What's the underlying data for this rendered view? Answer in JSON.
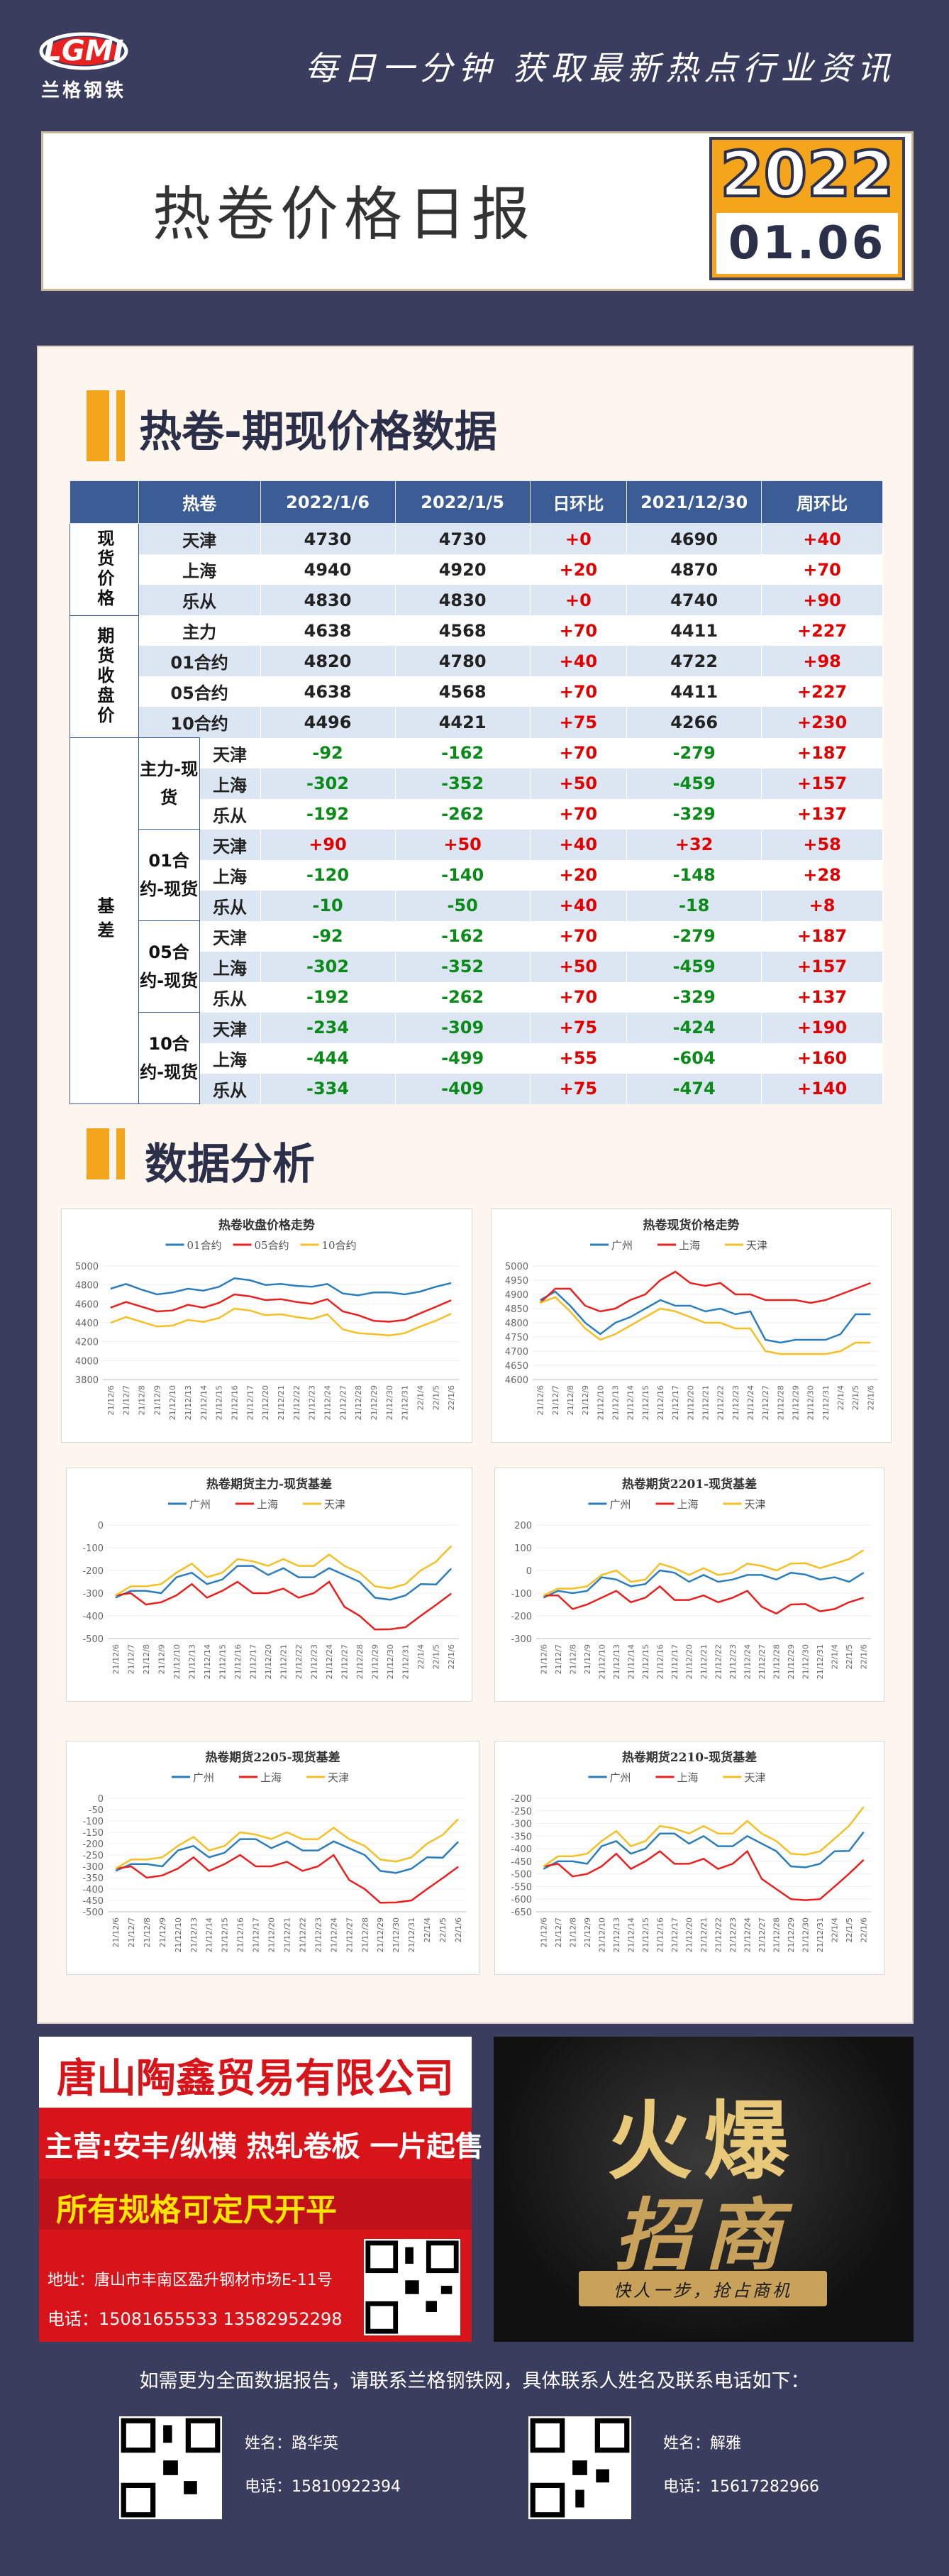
{
  "header": {
    "logo_text": "LGMI",
    "logo_sub": "兰格钢铁",
    "slogan": "每日一分钟  获取最新热点行业资讯",
    "title": "热卷价格日报",
    "year": "2022",
    "date": "01.06"
  },
  "section1": {
    "title": "热卷-期现价格数据"
  },
  "table": {
    "headers": [
      "热卷",
      "2022/1/6",
      "2022/1/5",
      "日环比",
      "2021/12/30",
      "周环比"
    ],
    "spot_group": "现货价格",
    "futures_group": "期货收盘价",
    "basis_group": "基差",
    "spot": [
      {
        "name": "天津",
        "v1": "4730",
        "v2": "4730",
        "d": "+0",
        "w0": "4690",
        "w": "+40"
      },
      {
        "name": "上海",
        "v1": "4940",
        "v2": "4920",
        "d": "+20",
        "w0": "4870",
        "w": "+70"
      },
      {
        "name": "乐从",
        "v1": "4830",
        "v2": "4830",
        "d": "+0",
        "w0": "4740",
        "w": "+90"
      }
    ],
    "futures": [
      {
        "name": "主力",
        "v1": "4638",
        "v2": "4568",
        "d": "+70",
        "w0": "4411",
        "w": "+227"
      },
      {
        "name": "01合约",
        "v1": "4820",
        "v2": "4780",
        "d": "+40",
        "w0": "4722",
        "w": "+98"
      },
      {
        "name": "05合约",
        "v1": "4638",
        "v2": "4568",
        "d": "+70",
        "w0": "4411",
        "w": "+227"
      },
      {
        "name": "10合约",
        "v1": "4496",
        "v2": "4421",
        "d": "+75",
        "w0": "4266",
        "w": "+230"
      }
    ],
    "basis": [
      {
        "label": "主力-现货",
        "rows": [
          {
            "city": "天津",
            "v1": "-92",
            "v2": "-162",
            "d": "+70",
            "w0": "-279",
            "w": "+187"
          },
          {
            "city": "上海",
            "v1": "-302",
            "v2": "-352",
            "d": "+50",
            "w0": "-459",
            "w": "+157"
          },
          {
            "city": "乐从",
            "v1": "-192",
            "v2": "-262",
            "d": "+70",
            "w0": "-329",
            "w": "+137"
          }
        ]
      },
      {
        "label": "01合约-现货",
        "rows": [
          {
            "city": "天津",
            "v1": "+90",
            "v2": "+50",
            "d": "+40",
            "w0": "+32",
            "w": "+58"
          },
          {
            "city": "上海",
            "v1": "-120",
            "v2": "-140",
            "d": "+20",
            "w0": "-148",
            "w": "+28"
          },
          {
            "city": "乐从",
            "v1": "-10",
            "v2": "-50",
            "d": "+40",
            "w0": "-18",
            "w": "+8"
          }
        ]
      },
      {
        "label": "05合约-现货",
        "rows": [
          {
            "city": "天津",
            "v1": "-92",
            "v2": "-162",
            "d": "+70",
            "w0": "-279",
            "w": "+187"
          },
          {
            "city": "上海",
            "v1": "-302",
            "v2": "-352",
            "d": "+50",
            "w0": "-459",
            "w": "+157"
          },
          {
            "city": "乐从",
            "v1": "-192",
            "v2": "-262",
            "d": "+70",
            "w0": "-329",
            "w": "+137"
          }
        ]
      },
      {
        "label": "10合约-现货",
        "rows": [
          {
            "city": "天津",
            "v1": "-234",
            "v2": "-309",
            "d": "+75",
            "w0": "-424",
            "w": "+190"
          },
          {
            "city": "上海",
            "v1": "-444",
            "v2": "-499",
            "d": "+55",
            "w0": "-604",
            "w": "+160"
          },
          {
            "city": "乐从",
            "v1": "-334",
            "v2": "-409",
            "d": "+75",
            "w0": "-474",
            "w": "+140"
          }
        ]
      }
    ]
  },
  "section2": {
    "title": "数据分析"
  },
  "chart_data": [
    {
      "type": "line",
      "title": "热卷收盘价格走势",
      "x": [
        "21/12/6",
        "21/12/7",
        "21/12/8",
        "21/12/9",
        "21/12/10",
        "21/12/13",
        "21/12/14",
        "21/12/15",
        "21/12/16",
        "21/12/17",
        "21/12/20",
        "21/12/21",
        "21/12/22",
        "21/12/23",
        "21/12/24",
        "21/12/27",
        "21/12/28",
        "21/12/29",
        "21/12/30",
        "21/12/31",
        "22/1/4",
        "22/1/5",
        "22/1/6"
      ],
      "ylim": [
        3800,
        5000
      ],
      "yticks": [
        "5000",
        "4800",
        "4600",
        "4400",
        "4200",
        "4000",
        "3800"
      ],
      "series": [
        {
          "name": "01合约",
          "color": "#2b7dbb",
          "values": [
            4760,
            4810,
            4750,
            4700,
            4720,
            4760,
            4740,
            4780,
            4870,
            4850,
            4800,
            4810,
            4790,
            4780,
            4810,
            4710,
            4690,
            4720,
            4722,
            4700,
            4730,
            4780,
            4820
          ]
        },
        {
          "name": "05合约",
          "color": "#e8201f",
          "values": [
            4560,
            4620,
            4570,
            4520,
            4530,
            4590,
            4560,
            4610,
            4700,
            4680,
            4640,
            4650,
            4620,
            4600,
            4650,
            4520,
            4480,
            4420,
            4411,
            4430,
            4500,
            4568,
            4638
          ]
        },
        {
          "name": "10合约",
          "color": "#f4c026",
          "values": [
            4400,
            4460,
            4410,
            4360,
            4370,
            4430,
            4410,
            4450,
            4550,
            4530,
            4480,
            4490,
            4460,
            4440,
            4490,
            4330,
            4290,
            4280,
            4266,
            4290,
            4360,
            4421,
            4496
          ]
        }
      ]
    },
    {
      "type": "line",
      "title": "热卷现货价格走势",
      "x": [
        "21/12/6",
        "21/12/7",
        "21/12/8",
        "21/12/9",
        "21/12/10",
        "21/12/13",
        "21/12/14",
        "21/12/15",
        "21/12/16",
        "21/12/17",
        "21/12/20",
        "21/12/21",
        "21/12/22",
        "21/12/23",
        "21/12/24",
        "21/12/27",
        "21/12/28",
        "21/12/29",
        "21/12/30",
        "21/12/31",
        "22/1/4",
        "22/1/5",
        "22/1/6"
      ],
      "ylim": [
        4600,
        5000
      ],
      "yticks": [
        "5000",
        "4950",
        "4900",
        "4850",
        "4800",
        "4750",
        "4700",
        "4650",
        "4600"
      ],
      "series": [
        {
          "name": "广州",
          "color": "#2b7dbb",
          "values": [
            4880,
            4910,
            4860,
            4800,
            4760,
            4800,
            4820,
            4850,
            4880,
            4860,
            4860,
            4840,
            4850,
            4830,
            4840,
            4740,
            4730,
            4740,
            4740,
            4740,
            4760,
            4830,
            4830
          ]
        },
        {
          "name": "上海",
          "color": "#e8201f",
          "values": [
            4870,
            4920,
            4920,
            4860,
            4840,
            4850,
            4880,
            4900,
            4950,
            4980,
            4940,
            4930,
            4940,
            4900,
            4900,
            4880,
            4880,
            4880,
            4870,
            4880,
            4900,
            4920,
            4940
          ]
        },
        {
          "name": "天津",
          "color": "#f4c026",
          "values": [
            4870,
            4890,
            4840,
            4780,
            4740,
            4760,
            4790,
            4820,
            4850,
            4840,
            4820,
            4800,
            4800,
            4780,
            4780,
            4700,
            4690,
            4690,
            4690,
            4690,
            4700,
            4730,
            4730
          ]
        }
      ]
    },
    {
      "type": "line",
      "title": "热卷期货主力-现货基差",
      "x": [
        "21/12/6",
        "21/12/7",
        "21/12/8",
        "21/12/9",
        "21/12/10",
        "21/12/13",
        "21/12/14",
        "21/12/15",
        "21/12/16",
        "21/12/17",
        "21/12/20",
        "21/12/21",
        "21/12/22",
        "21/12/23",
        "21/12/24",
        "21/12/27",
        "21/12/28",
        "21/12/29",
        "21/12/30",
        "21/12/31",
        "22/1/4",
        "22/1/5",
        "22/1/6"
      ],
      "ylim": [
        -500,
        0
      ],
      "yticks": [
        "0",
        "-100",
        "-200",
        "-300",
        "-400",
        "-500"
      ],
      "series": [
        {
          "name": "广州",
          "color": "#2b7dbb",
          "values": [
            -320,
            -290,
            -290,
            -300,
            -230,
            -210,
            -260,
            -240,
            -180,
            -180,
            -220,
            -190,
            -230,
            -230,
            -190,
            -220,
            -250,
            -320,
            -329,
            -310,
            -260,
            -262,
            -192
          ]
        },
        {
          "name": "上海",
          "color": "#e8201f",
          "values": [
            -310,
            -300,
            -350,
            -340,
            -310,
            -260,
            -320,
            -290,
            -250,
            -300,
            -300,
            -280,
            -320,
            -300,
            -250,
            -360,
            -400,
            -460,
            -459,
            -450,
            -400,
            -352,
            -302
          ]
        },
        {
          "name": "天津",
          "color": "#f4c026",
          "values": [
            -310,
            -270,
            -270,
            -260,
            -210,
            -170,
            -230,
            -210,
            -150,
            -160,
            -180,
            -150,
            -180,
            -180,
            -130,
            -180,
            -210,
            -270,
            -279,
            -260,
            -200,
            -162,
            -92
          ]
        }
      ]
    },
    {
      "type": "line",
      "title": "热卷期货2201-现货基差",
      "x": [
        "21/12/6",
        "21/12/7",
        "21/12/8",
        "21/12/9",
        "21/12/10",
        "21/12/13",
        "21/12/14",
        "21/12/15",
        "21/12/16",
        "21/12/17",
        "21/12/20",
        "21/12/21",
        "21/12/22",
        "21/12/23",
        "21/12/24",
        "21/12/27",
        "21/12/28",
        "21/12/29",
        "21/12/30",
        "21/12/31",
        "22/1/4",
        "22/1/5",
        "22/1/6"
      ],
      "ylim": [
        -300,
        200
      ],
      "yticks": [
        "200",
        "100",
        "0",
        "-100",
        "-200",
        "-300"
      ],
      "series": [
        {
          "name": "广州",
          "color": "#2b7dbb",
          "values": [
            -120,
            -90,
            -100,
            -90,
            -30,
            -40,
            -70,
            -60,
            0,
            -10,
            -50,
            -20,
            -50,
            -40,
            -20,
            -20,
            -40,
            -10,
            -18,
            -40,
            -30,
            -50,
            -10
          ]
        },
        {
          "name": "上海",
          "color": "#e8201f",
          "values": [
            -110,
            -110,
            -170,
            -150,
            -120,
            -90,
            -140,
            -120,
            -70,
            -130,
            -130,
            -110,
            -140,
            -120,
            -90,
            -160,
            -190,
            -150,
            -148,
            -180,
            -170,
            -140,
            -120
          ]
        },
        {
          "name": "天津",
          "color": "#f4c026",
          "values": [
            -110,
            -80,
            -80,
            -70,
            -20,
            0,
            -50,
            -40,
            30,
            10,
            -20,
            10,
            -20,
            -10,
            30,
            20,
            0,
            30,
            32,
            10,
            30,
            50,
            90
          ]
        }
      ]
    },
    {
      "type": "line",
      "title": "热卷期货2205-现货基差",
      "x": [
        "21/12/6",
        "21/12/7",
        "21/12/8",
        "21/12/9",
        "21/12/10",
        "21/12/13",
        "21/12/14",
        "21/12/15",
        "21/12/16",
        "21/12/17",
        "21/12/20",
        "21/12/21",
        "21/12/22",
        "21/12/23",
        "21/12/24",
        "21/12/27",
        "21/12/28",
        "21/12/29",
        "21/12/30",
        "21/12/31",
        "22/1/4",
        "22/1/5",
        "22/1/6"
      ],
      "ylim": [
        -500,
        0
      ],
      "yticks": [
        "0",
        "-50",
        "-100",
        "-150",
        "-200",
        "-250",
        "-300",
        "-350",
        "-400",
        "-450",
        "-500"
      ],
      "series": [
        {
          "name": "广州",
          "color": "#2b7dbb",
          "values": [
            -320,
            -290,
            -290,
            -300,
            -230,
            -210,
            -260,
            -240,
            -180,
            -180,
            -220,
            -190,
            -230,
            -230,
            -190,
            -220,
            -250,
            -320,
            -329,
            -310,
            -260,
            -262,
            -192
          ]
        },
        {
          "name": "上海",
          "color": "#e8201f",
          "values": [
            -310,
            -300,
            -350,
            -340,
            -310,
            -260,
            -320,
            -290,
            -250,
            -300,
            -300,
            -280,
            -320,
            -300,
            -250,
            -360,
            -400,
            -460,
            -459,
            -450,
            -400,
            -352,
            -302
          ]
        },
        {
          "name": "天津",
          "color": "#f4c026",
          "values": [
            -310,
            -270,
            -270,
            -260,
            -210,
            -170,
            -230,
            -210,
            -150,
            -160,
            -180,
            -150,
            -180,
            -180,
            -130,
            -180,
            -210,
            -270,
            -279,
            -260,
            -200,
            -162,
            -92
          ]
        }
      ]
    },
    {
      "type": "line",
      "title": "热卷期货2210-现货基差",
      "x": [
        "21/12/6",
        "21/12/7",
        "21/12/8",
        "21/12/9",
        "21/12/10",
        "21/12/13",
        "21/12/14",
        "21/12/15",
        "21/12/16",
        "21/12/17",
        "21/12/20",
        "21/12/21",
        "21/12/22",
        "21/12/23",
        "21/12/24",
        "21/12/27",
        "21/12/28",
        "21/12/29",
        "21/12/30",
        "21/12/31",
        "22/1/4",
        "22/1/5",
        "22/1/6"
      ],
      "ylim": [
        -650,
        -200
      ],
      "yticks": [
        "-200",
        "-250",
        "-300",
        "-350",
        "-400",
        "-450",
        "-500",
        "-550",
        "-600",
        "-650"
      ],
      "series": [
        {
          "name": "广州",
          "color": "#2b7dbb",
          "values": [
            -480,
            -450,
            -450,
            -460,
            -390,
            -370,
            -420,
            -400,
            -340,
            -340,
            -380,
            -350,
            -390,
            -390,
            -350,
            -380,
            -410,
            -470,
            -474,
            -460,
            -410,
            -409,
            -334
          ]
        },
        {
          "name": "上海",
          "color": "#e8201f",
          "values": [
            -470,
            -460,
            -510,
            -500,
            -470,
            -420,
            -480,
            -450,
            -410,
            -460,
            -460,
            -440,
            -480,
            -460,
            -410,
            -520,
            -560,
            -600,
            -604,
            -600,
            -550,
            -499,
            -444
          ]
        },
        {
          "name": "天津",
          "color": "#f4c026",
          "values": [
            -470,
            -430,
            -430,
            -420,
            -370,
            -330,
            -390,
            -370,
            -310,
            -320,
            -340,
            -310,
            -340,
            -340,
            -290,
            -340,
            -370,
            -420,
            -424,
            -410,
            -360,
            -309,
            -234
          ]
        }
      ]
    }
  ],
  "ad1": {
    "company": "唐山陶鑫贸易有限公司",
    "main": "主营:安丰/纵横  热轧卷板  一片起售",
    "spec": "所有规格可定尺开平",
    "addr": "地址：唐山市丰南区盈升钢材市场E-11号",
    "tel": "电话：15081655533   13582952298"
  },
  "ad2": {
    "big1": "火爆",
    "big2": "招商",
    "sub": "快人一步，抢占商机"
  },
  "footer": {
    "text": "如需更为全面数据报告，请联系兰格钢铁网，具体联系人姓名及联系电话如下：",
    "c1_name": "姓名：路华英",
    "c1_tel": "电话：15810922394",
    "c2_name": "姓名：解雅",
    "c2_tel": "电话：15617282966"
  }
}
